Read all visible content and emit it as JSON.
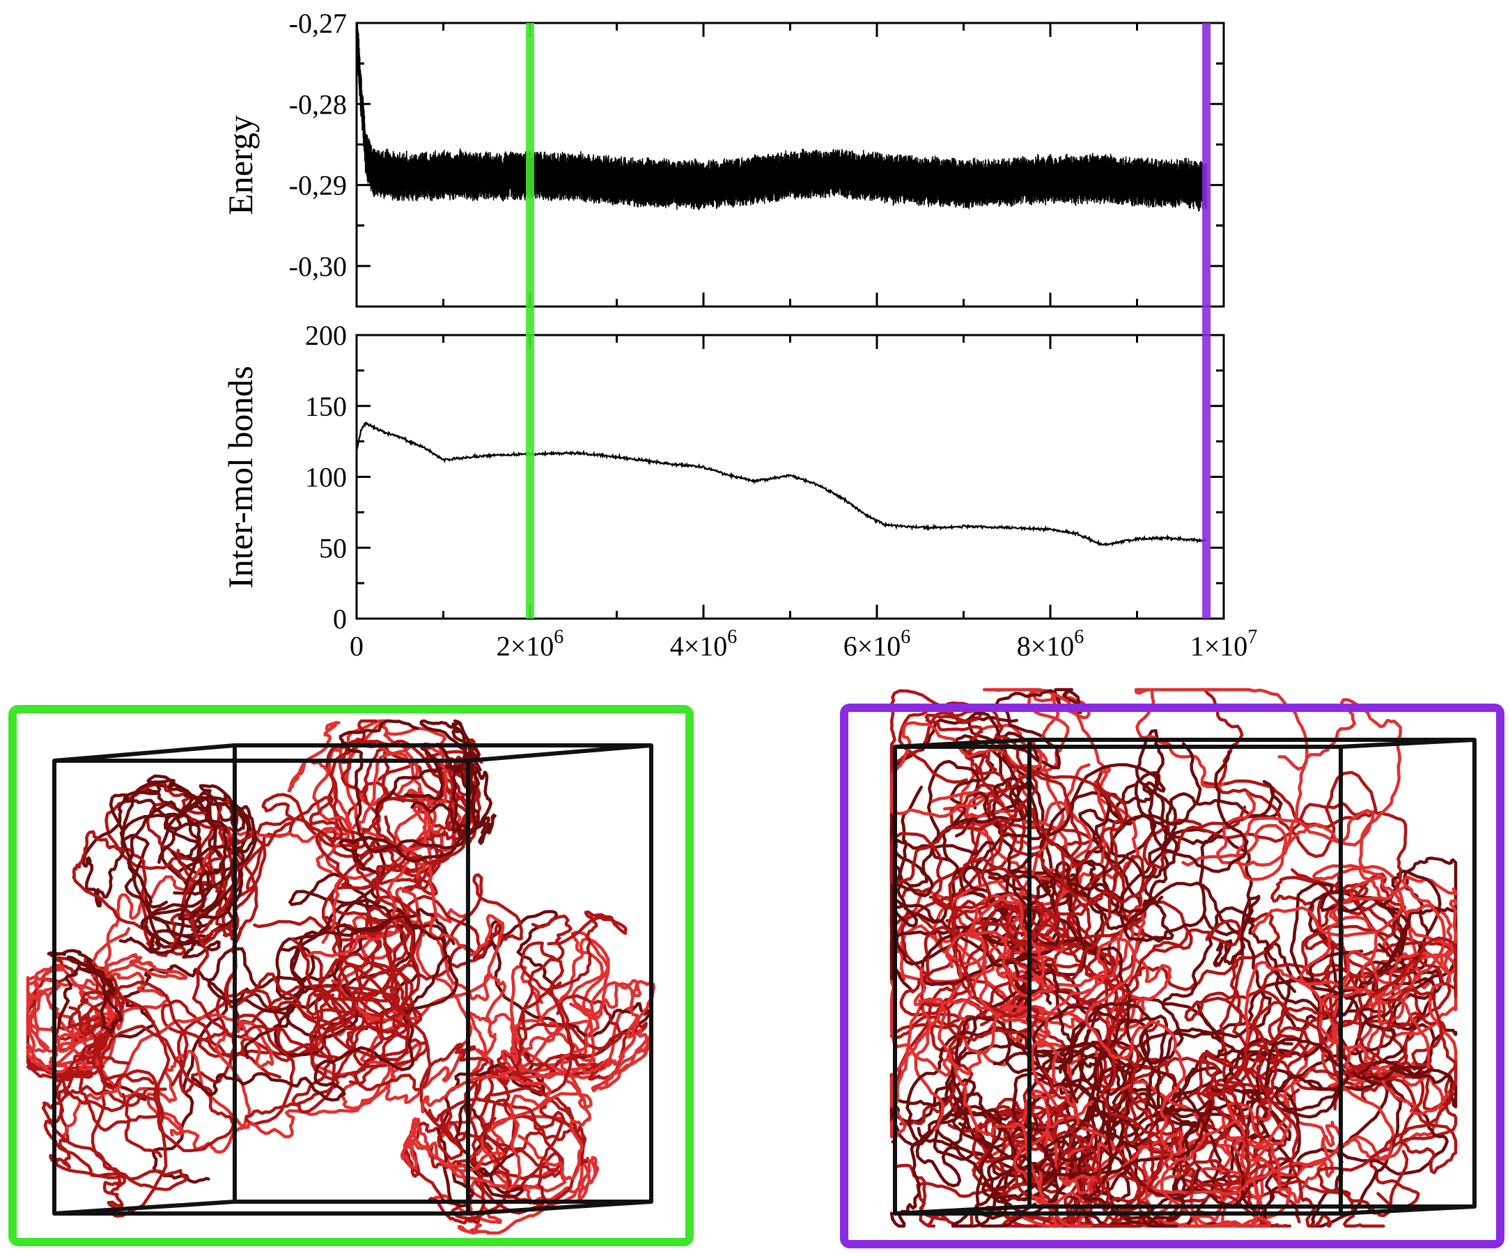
{
  "colors": {
    "marker_early": "#3ee62a",
    "marker_late": "#8a2be2",
    "trace": "#000000",
    "polymer": "#b01515",
    "polymer_dark": "#6e0b0b",
    "polymer_light": "#e03030",
    "box": "#111111"
  },
  "chart_data": [
    {
      "type": "line",
      "title": "",
      "ylabel": "Energy",
      "xlabel": "",
      "xlim": [
        0,
        10000000
      ],
      "ylim": [
        -0.305,
        -0.27
      ],
      "y_ticks": [
        -0.27,
        -0.28,
        -0.29,
        -0.3
      ],
      "y_tick_labels": [
        "-0,27",
        "-0,28",
        "-0,29",
        "-0,30"
      ],
      "x_tick_labels_shown": false,
      "grid": false,
      "series": [
        {
          "x": [
            0,
            50000,
            100000,
            150000,
            200000,
            300000,
            500000,
            1000000,
            1500000,
            2000000,
            2500000,
            3000000,
            3500000,
            4000000,
            4500000,
            5000000,
            5500000,
            6000000,
            6500000,
            7000000,
            7500000,
            8000000,
            8500000,
            9000000,
            9500000,
            9800000
          ],
          "y": [
            -0.27,
            -0.279,
            -0.2855,
            -0.2875,
            -0.2885,
            -0.2888,
            -0.289,
            -0.2888,
            -0.2889,
            -0.2888,
            -0.289,
            -0.2895,
            -0.2898,
            -0.29,
            -0.2895,
            -0.2888,
            -0.2885,
            -0.289,
            -0.2895,
            -0.2898,
            -0.2897,
            -0.2892,
            -0.2893,
            -0.2896,
            -0.2898,
            -0.29
          ],
          "fluctuation_amplitude": 0.003
        }
      ],
      "markers": [
        {
          "x": 2000000,
          "color": "#3ee62a"
        },
        {
          "x": 9800000,
          "color": "#8a2be2"
        }
      ]
    },
    {
      "type": "line",
      "title": "",
      "ylabel": "Inter-mol bonds",
      "xlabel": "",
      "xlim": [
        0,
        10000000
      ],
      "ylim": [
        0,
        200
      ],
      "y_ticks": [
        0,
        50,
        100,
        150,
        200
      ],
      "y_tick_labels": [
        "0",
        "50",
        "100",
        "150",
        "200"
      ],
      "x_ticks": [
        0,
        2000000,
        4000000,
        6000000,
        8000000,
        10000000
      ],
      "x_tick_labels": [
        {
          "mantissa": "0",
          "exp": ""
        },
        {
          "mantissa": "2×10",
          "exp": "6"
        },
        {
          "mantissa": "4×10",
          "exp": "6"
        },
        {
          "mantissa": "6×10",
          "exp": "6"
        },
        {
          "mantissa": "8×10",
          "exp": "6"
        },
        {
          "mantissa": "1×10",
          "exp": "7"
        }
      ],
      "grid": false,
      "series": [
        {
          "x": [
            0,
            50000,
            100000,
            300000,
            500000,
            800000,
            1000000,
            1200000,
            1500000,
            2000000,
            2500000,
            3000000,
            3500000,
            4000000,
            4300000,
            4600000,
            5000000,
            5300000,
            5600000,
            5900000,
            6100000,
            6400000,
            6600000,
            7000000,
            7500000,
            8000000,
            8300000,
            8600000,
            9000000,
            9300000,
            9800000
          ],
          "y": [
            118,
            133,
            138,
            132,
            128,
            120,
            112,
            113,
            115,
            116,
            117,
            114,
            110,
            107,
            101,
            97,
            101,
            95,
            85,
            72,
            66,
            65,
            64,
            65,
            64,
            63,
            60,
            52,
            56,
            57,
            55
          ]
        }
      ],
      "markers": [
        {
          "x": 2000000,
          "color": "#3ee62a"
        },
        {
          "x": 9800000,
          "color": "#8a2be2"
        }
      ]
    }
  ],
  "snapshots": [
    {
      "name": "snapshot-early",
      "frame_color": "#3ee62a",
      "distribution": "central-globule"
    },
    {
      "name": "snapshot-late",
      "frame_color": "#8a2be2",
      "distribution": "spread"
    }
  ]
}
